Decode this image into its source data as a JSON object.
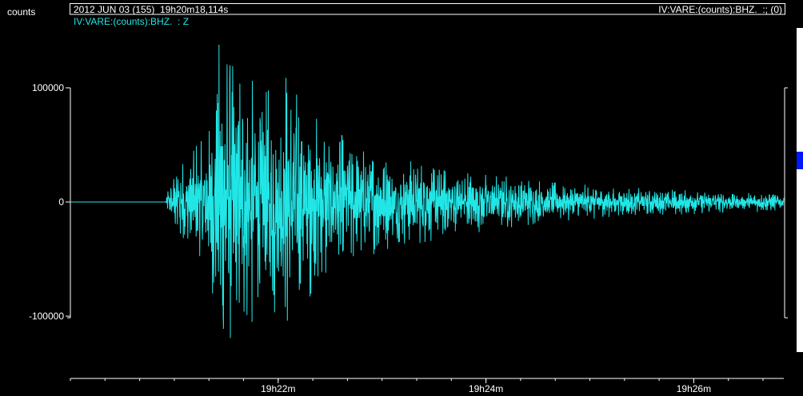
{
  "header": {
    "unit": "counts",
    "date_time": "2012 JUN 03 (155)  19h20m18,114s",
    "channel_right": "IV:VARE:(counts):BHZ.  :; (0)",
    "trace_label": "IV:VARE:(counts):BHZ.  : Z"
  },
  "colors": {
    "trace": "#22e6e6",
    "background": "#000000",
    "axis": "#ffffff"
  },
  "chart_data": {
    "type": "line",
    "title": "",
    "xlabel": "",
    "ylabel": "counts",
    "xlim": [
      0,
      412
    ],
    "ylim": [
      -150000,
      150000
    ],
    "x_ticks": [
      {
        "value": 120,
        "label": "19h22m"
      },
      {
        "value": 240,
        "label": "19h24m"
      },
      {
        "value": 360,
        "label": "19h26m"
      }
    ],
    "y_ticks": [
      {
        "value": 100000,
        "label": "100000"
      },
      {
        "value": 0,
        "label": "0"
      },
      {
        "value": -100000,
        "label": "-100000"
      }
    ],
    "grid": false,
    "series": [
      {
        "envelope_samples": [
          {
            "t": 0,
            "amp": 0
          },
          {
            "t": 55,
            "amp": 0
          },
          {
            "t": 56,
            "amp": 10000
          },
          {
            "t": 62,
            "amp": 35000
          },
          {
            "t": 70,
            "amp": 45000
          },
          {
            "t": 80,
            "amp": 60000
          },
          {
            "t": 86,
            "amp": 140000
          },
          {
            "t": 92,
            "amp": 120000
          },
          {
            "t": 100,
            "amp": 115000
          },
          {
            "t": 112,
            "amp": 95000
          },
          {
            "t": 125,
            "amp": 110000
          },
          {
            "t": 140,
            "amp": 75000
          },
          {
            "t": 160,
            "amp": 55000
          },
          {
            "t": 180,
            "amp": 40000
          },
          {
            "t": 210,
            "amp": 32000
          },
          {
            "t": 240,
            "amp": 25000
          },
          {
            "t": 270,
            "amp": 18000
          },
          {
            "t": 300,
            "amp": 15000
          },
          {
            "t": 340,
            "amp": 11000
          },
          {
            "t": 380,
            "amp": 9000
          },
          {
            "t": 412,
            "amp": 8000
          }
        ]
      }
    ]
  }
}
